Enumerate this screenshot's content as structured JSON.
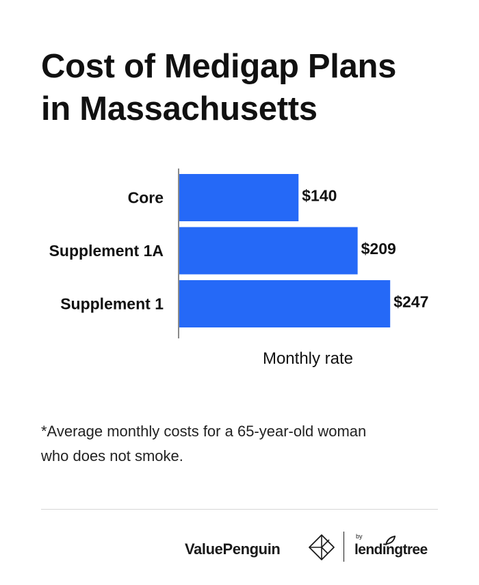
{
  "title": {
    "line1": "Cost of Medigap Plans",
    "line2": "in Massachusetts"
  },
  "colors": {
    "bar": "#2569f7",
    "axis": "#8a8a8a",
    "text": "#111111"
  },
  "chart_data": {
    "type": "bar",
    "orientation": "horizontal",
    "categories": [
      "Core",
      "Supplement 1A",
      "Supplement 1"
    ],
    "values": [
      140,
      209,
      247
    ],
    "value_labels": [
      "$140",
      "$209",
      "$247"
    ],
    "xlabel": "Monthly rate",
    "ylabel": "",
    "xlim": [
      0,
      270
    ],
    "grid": false,
    "legend": "none"
  },
  "footnote": {
    "line1": "*Average monthly costs for a 65-year-old woman",
    "line2": "who does not smoke."
  },
  "brand": {
    "primary": "ValuePenguin",
    "primary_icon": "valuepenguin-logo-icon",
    "by": "by",
    "secondary": "lendingtree"
  }
}
